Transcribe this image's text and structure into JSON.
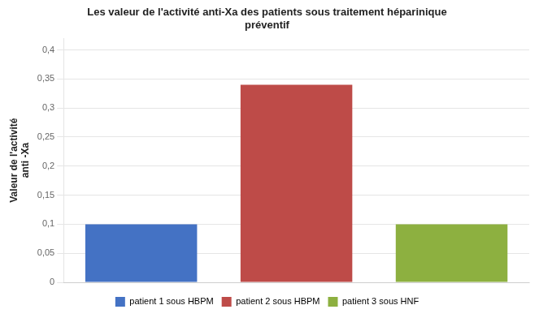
{
  "chart_data": {
    "type": "bar",
    "title": "Les valeur de l'activité anti-Xa des patients sous traitement héparinique\npréventif",
    "ylabel": "Valeur de l'activité\nanti -Xa",
    "categories": [
      "patient 1 sous HBPM",
      "patient 2 sous HBPM",
      "patient 3 sous HNF"
    ],
    "values": [
      0.1,
      0.34,
      0.1
    ],
    "colors": [
      "#4472c4",
      "#be4b48",
      "#8db040"
    ],
    "ylim": [
      0,
      0.42
    ],
    "yticks": [
      0,
      {
        "value": 0.05,
        "label": "0,05"
      },
      {
        "value": 0.1,
        "label": "0,1"
      },
      {
        "value": 0.15,
        "label": "0,15"
      },
      {
        "value": 0.2,
        "label": "0,2"
      },
      {
        "value": 0.25,
        "label": "0,25"
      },
      {
        "value": 0.3,
        "label": "0,3"
      },
      {
        "value": 0.35,
        "label": "0,35"
      },
      {
        "value": 0.4,
        "label": "0,4"
      }
    ],
    "grid": true,
    "legend": "bottom",
    "tick_labels": "y"
  }
}
